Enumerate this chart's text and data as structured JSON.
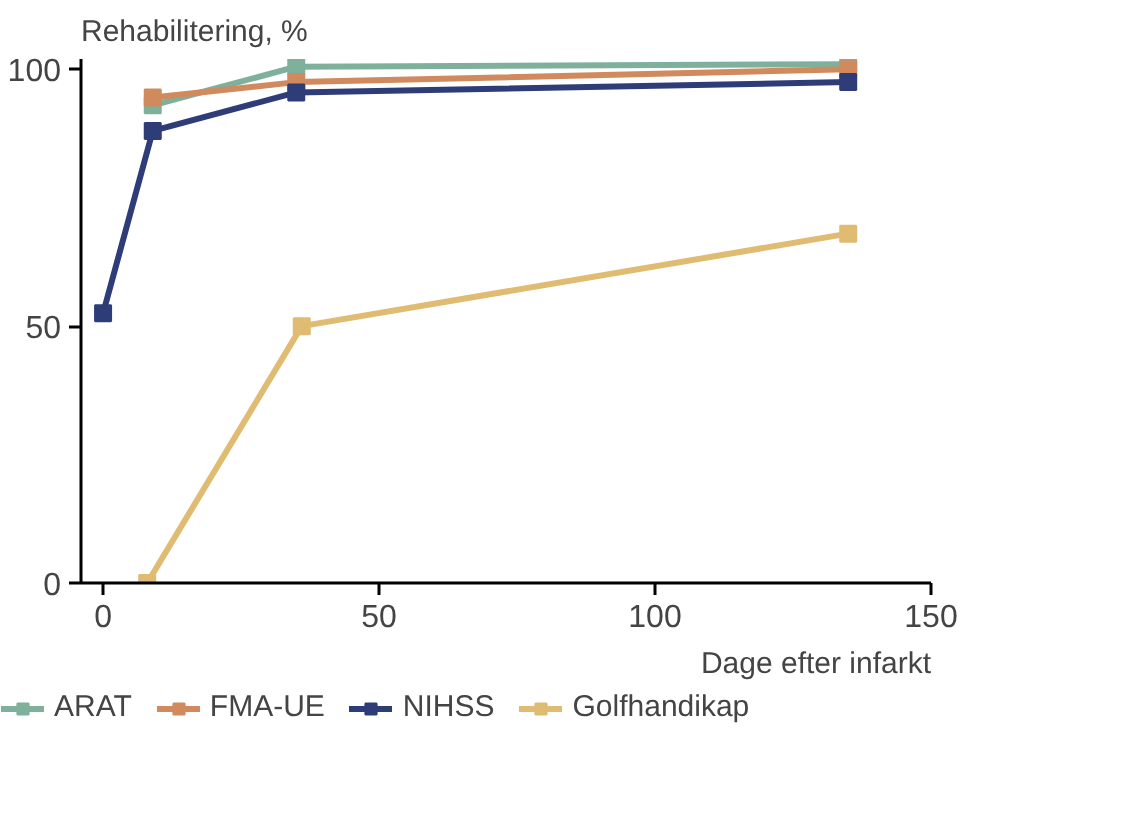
{
  "chart_data": {
    "type": "line",
    "title": "Rehabilitering, %",
    "xlabel": "Dage efter infarkt",
    "xlim": [
      -4,
      150
    ],
    "ylim": [
      0,
      102
    ],
    "xticks": [
      0,
      50,
      100,
      150
    ],
    "yticks": [
      0,
      50,
      100
    ],
    "grid": false,
    "legend": "bottom",
    "marker": "square",
    "line_style": "solid",
    "series": [
      {
        "name": "ARAT",
        "color": "#7fb09c",
        "x": [
          9,
          35,
          135
        ],
        "values": [
          93,
          100.5,
          101
        ]
      },
      {
        "name": "FMA-UE",
        "color": "#d08a5e",
        "x": [
          9,
          35,
          135
        ],
        "values": [
          94.5,
          97.5,
          100
        ]
      },
      {
        "name": "NIHSS",
        "color": "#2e3d78",
        "x": [
          0,
          9,
          35,
          135
        ],
        "values": [
          52.5,
          88,
          95.5,
          97.5
        ]
      },
      {
        "name": "Golfhandikap",
        "color": "#e0bb72",
        "x": [
          8,
          36,
          135
        ],
        "values": [
          0,
          50,
          68
        ]
      }
    ]
  }
}
